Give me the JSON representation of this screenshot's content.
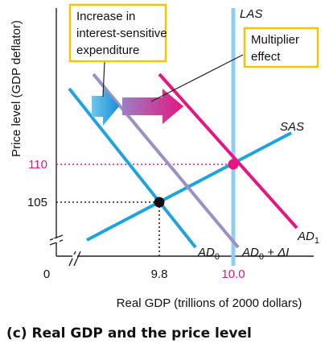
{
  "caption": "(c) Real GDP and the price level",
  "axes": {
    "y_label": "Price level (GDP deflator)",
    "x_label": "Real GDP (trillions of 2000 dollars)",
    "origin": "0",
    "y_ticks": [
      "110",
      "105"
    ],
    "x_ticks": [
      "9.8",
      "10.0"
    ]
  },
  "curves": {
    "las": "LAS",
    "sas": "SAS",
    "ad0_main": "AD",
    "ad0_sub": "0",
    "ad0_plus_main": "AD",
    "ad0_plus_sub": "0",
    "ad0_plus_rest": " + ΔI",
    "ad1_main": "AD",
    "ad1_sub": "1"
  },
  "annotations": {
    "interest": [
      "Increase in",
      "interest-sensitive",
      "expenditure"
    ],
    "multiplier": [
      "Multiplier",
      "effect"
    ]
  },
  "colors": {
    "las": "#8ecfef",
    "sas": "#1ea3dd",
    "ad0": "#1ea3dd",
    "ad_shift": "#9b8fc8",
    "ad1": "#e6157f",
    "highlight": "#e6157f",
    "callout_border": "#f5c400"
  }
}
